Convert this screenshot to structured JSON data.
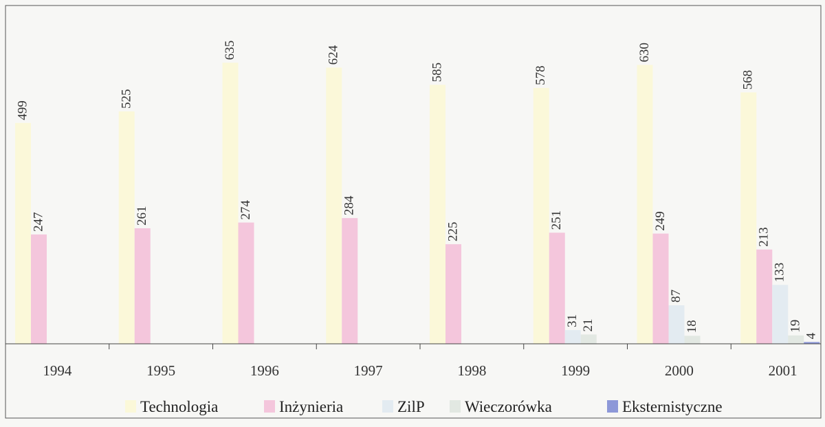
{
  "chart_data": {
    "type": "bar",
    "categories": [
      "1994",
      "1995",
      "1996",
      "1997",
      "1998",
      "1999",
      "2000",
      "2001"
    ],
    "series": [
      {
        "name": "Technologia",
        "color": "#fbf8d9",
        "values": [
          499,
          525,
          635,
          624,
          585,
          578,
          630,
          568
        ]
      },
      {
        "name": "Inżynieria",
        "color": "#f4c6dc",
        "values": [
          247,
          261,
          274,
          284,
          225,
          251,
          249,
          213
        ]
      },
      {
        "name": "ZilP",
        "color": "#e3ebf1",
        "values": [
          0,
          0,
          0,
          0,
          0,
          31,
          87,
          133
        ]
      },
      {
        "name": "Wieczorówka",
        "color": "#e2e8e2",
        "values": [
          0,
          0,
          0,
          0,
          0,
          21,
          18,
          19
        ]
      },
      {
        "name": "Eksternistyczne",
        "color": "#8d98d8",
        "values": [
          0,
          0,
          0,
          0,
          0,
          0,
          0,
          4
        ]
      }
    ],
    "data_labels": [
      [
        "499",
        "525",
        "635",
        "624",
        "585",
        "578",
        "630",
        "568"
      ],
      [
        "247",
        "261",
        "274",
        "284",
        "225",
        "251",
        "249",
        "213"
      ],
      [
        "",
        "",
        "",
        "",
        "",
        "31",
        "87",
        "133"
      ],
      [
        "",
        "",
        "",
        "",
        "",
        "21",
        "18",
        "19"
      ],
      [
        "",
        "",
        "",
        "",
        "",
        "",
        "",
        "4"
      ]
    ],
    "legend_position": "bottom",
    "ylim": [
      0,
      640
    ],
    "grid": false
  }
}
